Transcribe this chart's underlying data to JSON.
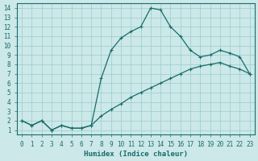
{
  "xlabel": "Humidex (Indice chaleur)",
  "background_color": "#cce8e8",
  "grid_color": "#99cccc",
  "line_color": "#1a6b6b",
  "xlim": [
    -0.5,
    23.5
  ],
  "ylim": [
    0.5,
    14.5
  ],
  "xticks": [
    0,
    1,
    2,
    3,
    4,
    5,
    6,
    7,
    8,
    9,
    10,
    11,
    12,
    13,
    14,
    15,
    16,
    17,
    18,
    19,
    20,
    21,
    22,
    23
  ],
  "yticks": [
    1,
    2,
    3,
    4,
    5,
    6,
    7,
    8,
    9,
    10,
    11,
    12,
    13,
    14
  ],
  "curve1_x": [
    0,
    1,
    2,
    3,
    4,
    5,
    6,
    7,
    8,
    9,
    10,
    11,
    12,
    13,
    14,
    15,
    16,
    17,
    18,
    19,
    20,
    21,
    22,
    23
  ],
  "curve1_y": [
    2.0,
    1.5,
    2.0,
    1.0,
    1.5,
    1.2,
    1.2,
    1.5,
    6.5,
    9.5,
    10.8,
    11.5,
    12.0,
    14.0,
    13.8,
    12.0,
    11.0,
    9.5,
    8.8,
    9.0,
    9.5,
    9.2,
    8.8,
    7.0
  ],
  "curve2_x": [
    0,
    1,
    2,
    3,
    4,
    5,
    6,
    7,
    8,
    9,
    10,
    11,
    12,
    13,
    14,
    15,
    16,
    17,
    18,
    19,
    20,
    21,
    22,
    23
  ],
  "curve2_y": [
    2.0,
    1.5,
    2.0,
    1.0,
    1.5,
    1.2,
    1.2,
    1.5,
    2.5,
    3.2,
    3.8,
    4.5,
    5.0,
    5.5,
    6.0,
    6.5,
    7.0,
    7.5,
    7.8,
    8.0,
    8.2,
    7.8,
    7.5,
    7.0
  ]
}
